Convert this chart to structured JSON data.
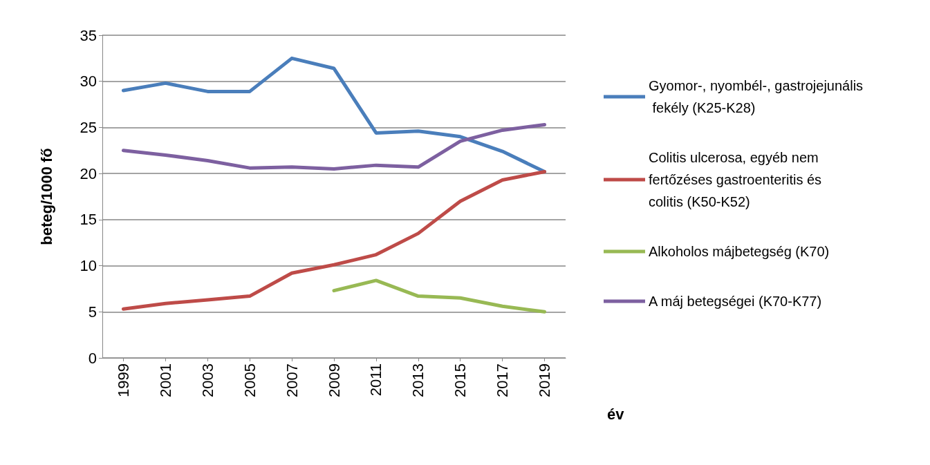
{
  "chart_data": {
    "type": "line",
    "xlabel": "év",
    "ylabel": "beteg/1000 fő",
    "categories": [
      "1999",
      "2001",
      "2003",
      "2005",
      "2007",
      "2009",
      "2011",
      "2013",
      "2015",
      "2017",
      "2019"
    ],
    "series": [
      {
        "name": "Gyomor-, nyombél-, gastrojejunális fekély (K25-K28)",
        "color": "#4a7ebb",
        "values": [
          29.0,
          29.8,
          28.9,
          28.9,
          32.5,
          31.4,
          24.4,
          24.6,
          24.0,
          22.4,
          20.2
        ]
      },
      {
        "name": "Colitis ulcerosa, egyéb nem fertőzéses gastroenteritis és colitis (K50-K52)",
        "color": "#be4b48",
        "values": [
          5.3,
          5.9,
          6.3,
          6.7,
          9.2,
          10.1,
          11.2,
          13.5,
          17.0,
          19.3,
          20.2
        ]
      },
      {
        "name": "Alkoholos májbetegség (K70)",
        "color": "#98b954",
        "values": [
          null,
          null,
          null,
          null,
          null,
          7.3,
          8.4,
          6.7,
          6.5,
          5.6,
          5.0
        ]
      },
      {
        "name": "A máj betegségei (K70-K77)",
        "color": "#7d60a0",
        "values": [
          22.5,
          22.0,
          21.4,
          20.6,
          20.7,
          20.5,
          20.9,
          20.7,
          23.5,
          24.7,
          25.3
        ]
      }
    ],
    "ylim": [
      0,
      35
    ],
    "yticks": [
      0,
      5,
      10,
      15,
      20,
      25,
      30,
      35
    ],
    "grid": "y",
    "legend": "right",
    "marker": "none",
    "line_style": "solid"
  }
}
